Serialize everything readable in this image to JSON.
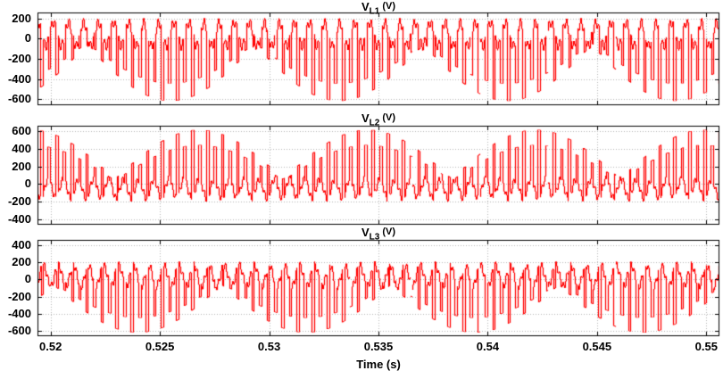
{
  "figure": {
    "background": "#ffffff",
    "line_color": "#ff0000",
    "grid_color": "#b5b5b5",
    "axis_color": "#000000",
    "tick_label_color": "#000000",
    "xlabel": "Time (s)",
    "x_range": [
      0.5194,
      0.5506
    ],
    "x_tick_values": [
      0.52,
      0.525,
      0.53,
      0.535,
      0.54,
      0.545,
      0.55
    ],
    "x_tick_labels": [
      "0.52",
      "0.525",
      "0.53",
      "0.535",
      "0.54",
      "0.545",
      "0.55"
    ]
  },
  "chart_data": [
    {
      "type": "line",
      "series_name": "V_L1",
      "title_prefix": "V",
      "title_sub": "L1",
      "title_unit": "(V)",
      "description": "PWM inverter load phase voltage with amplitude-modulated negative pulse envelope",
      "ylim": [
        -660,
        260
      ],
      "y_tick_values": [
        200,
        0,
        -200,
        -400,
        -600
      ],
      "y_tick_labels": [
        "200",
        "0",
        "-200",
        "-400",
        "-600"
      ],
      "signal": {
        "kind": "pwm-modulated",
        "carrier_hz": 2900,
        "envelope_period_s": 0.0077,
        "envelope_center_s": 0.5255,
        "duty_base": 0.66,
        "duty_env_add": 0.16,
        "base_level_v": 45,
        "base_ripple_v": 115,
        "base_ripple_hz": 1450,
        "base_ripple_phase": 0.4,
        "base_ripple2_v": 45,
        "base_ripple2_hz": 6150,
        "spike_sign": -1,
        "spike_min_v": 60,
        "spike_max_v": 615,
        "alt_spike_factor": 0.72
      }
    },
    {
      "type": "line",
      "series_name": "V_L2",
      "title_prefix": "V",
      "title_sub": "L2",
      "title_unit": "(V)",
      "description": "PWM inverter load phase voltage with amplitude-modulated positive pulse envelope",
      "ylim": [
        -460,
        660
      ],
      "y_tick_values": [
        600,
        400,
        200,
        0,
        -200,
        -400
      ],
      "y_tick_labels": [
        "600",
        "400",
        "200",
        "0",
        "-200",
        "-400"
      ],
      "signal": {
        "kind": "pwm-modulated",
        "carrier_hz": 2900,
        "envelope_period_s": 0.0077,
        "envelope_center_s": 0.5268,
        "duty_base": 0.66,
        "duty_env_add": 0.16,
        "base_level_v": -50,
        "base_ripple_v": 105,
        "base_ripple_hz": 1450,
        "base_ripple_phase": 2.5,
        "base_ripple2_v": 40,
        "base_ripple2_hz": 6150,
        "spike_sign": 1,
        "spike_min_v": 60,
        "spike_max_v": 615,
        "alt_spike_factor": 0.72
      }
    },
    {
      "type": "line",
      "series_name": "V_L3",
      "title_prefix": "V",
      "title_sub": "L3",
      "title_unit": "(V)",
      "description": "PWM inverter load phase voltage with amplitude-modulated negative pulse envelope",
      "ylim": [
        -660,
        460
      ],
      "y_tick_values": [
        400,
        200,
        0,
        -200,
        -400,
        -600
      ],
      "y_tick_labels": [
        "400",
        "200",
        "0",
        "-200",
        "-400",
        "-600"
      ],
      "signal": {
        "kind": "pwm-modulated",
        "carrier_hz": 2900,
        "envelope_period_s": 0.0077,
        "envelope_center_s": 0.524,
        "duty_base": 0.66,
        "duty_env_add": 0.16,
        "base_level_v": 45,
        "base_ripple_v": 120,
        "base_ripple_hz": 1450,
        "base_ripple_phase": 4.6,
        "base_ripple2_v": 45,
        "base_ripple2_hz": 6150,
        "spike_sign": -1,
        "spike_min_v": 60,
        "spike_max_v": 615,
        "alt_spike_factor": 0.72
      }
    }
  ]
}
